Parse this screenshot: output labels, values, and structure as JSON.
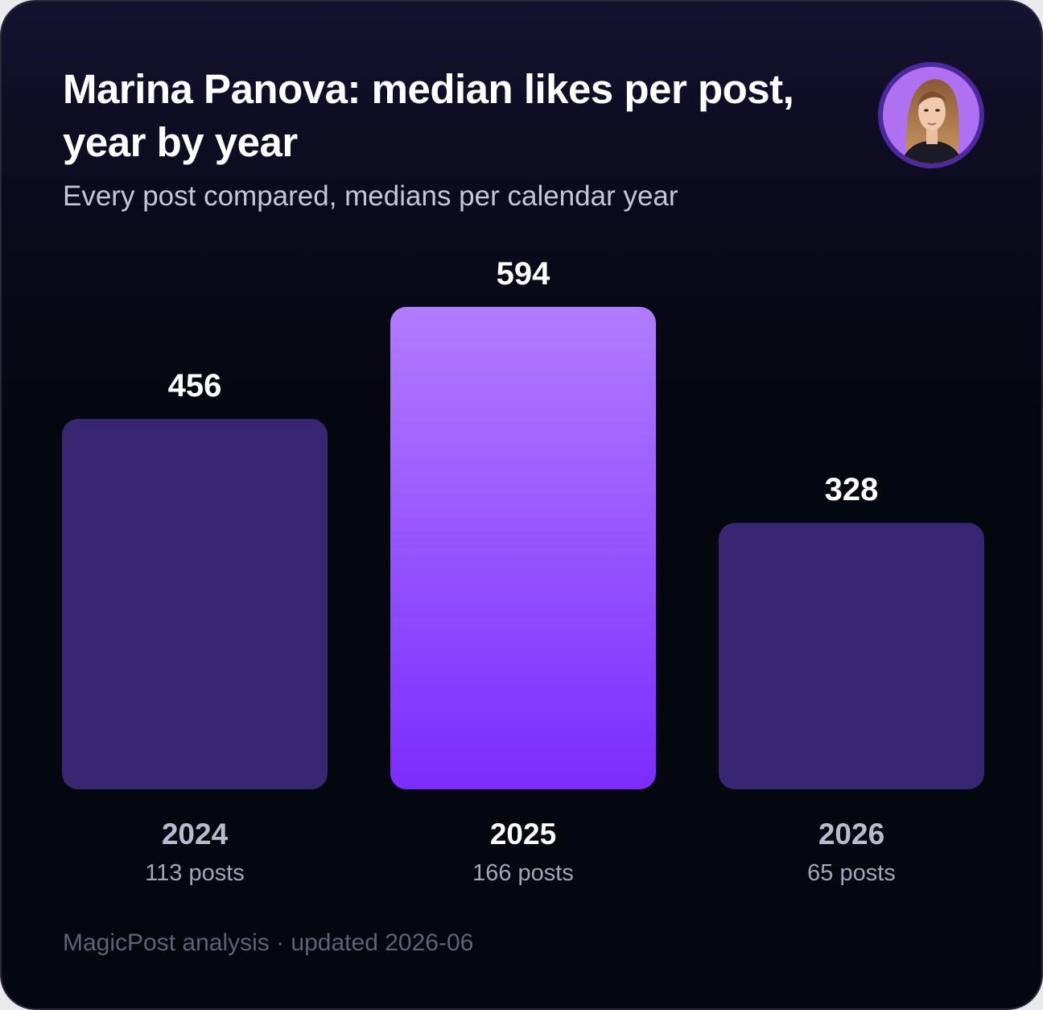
{
  "card": {
    "title": "Marina Panova: median likes per post, year by year",
    "subtitle": "Every post compared, medians per calendar year",
    "footer": "MagicPost analysis · updated 2026-06",
    "avatar_icon": "profile-photo"
  },
  "colors": {
    "highlight_top": "#b07cff",
    "highlight_bottom": "#7b2cff",
    "muted_bar": "#372671",
    "highlight_label": "#ffffff",
    "muted_label": "#b9bbcd"
  },
  "chart_data": {
    "type": "bar",
    "title": "Marina Panova: median likes per post, year by year",
    "subtitle": "Every post compared, medians per calendar year",
    "categories": [
      "2024",
      "2025",
      "2026"
    ],
    "values": [
      456,
      594,
      328
    ],
    "post_counts": [
      "113 posts",
      "166 posts",
      "65 posts"
    ],
    "highlighted": "2025",
    "ylim": [
      0,
      594
    ],
    "grid": false,
    "legend": "none"
  }
}
